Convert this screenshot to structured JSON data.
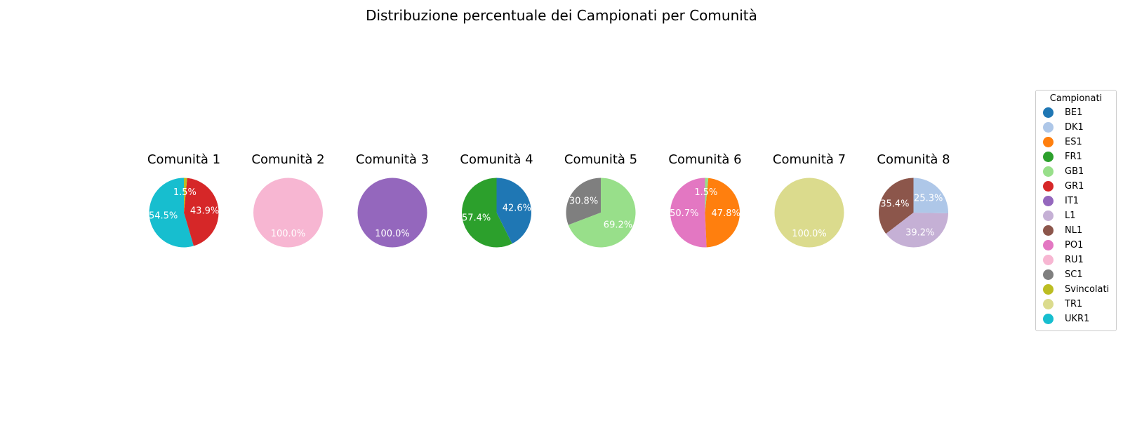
{
  "chart_data": {
    "type": "pie",
    "title": "Distribuzione percentuale dei Campionati per Comunità",
    "legend": {
      "title": "Campionati",
      "placement": "right",
      "entries": [
        {
          "name": "BE1",
          "color": "#1f77b4"
        },
        {
          "name": "DK1",
          "color": "#aec7e8"
        },
        {
          "name": "ES1",
          "color": "#ff7f0e"
        },
        {
          "name": "FR1",
          "color": "#2ca02c"
        },
        {
          "name": "GB1",
          "color": "#98df8a"
        },
        {
          "name": "GR1",
          "color": "#d62728"
        },
        {
          "name": "IT1",
          "color": "#9467bd"
        },
        {
          "name": "L1",
          "color": "#c5b0d5"
        },
        {
          "name": "NL1",
          "color": "#8c564b"
        },
        {
          "name": "PO1",
          "color": "#e377c2"
        },
        {
          "name": "RU1",
          "color": "#f7b6d2"
        },
        {
          "name": "SC1",
          "color": "#7f7f7f"
        },
        {
          "name": "Svincolati",
          "color": "#bcbd22"
        },
        {
          "name": "TR1",
          "color": "#dbdb8d"
        },
        {
          "name": "UKR1",
          "color": "#17becf"
        }
      ]
    },
    "pies": [
      {
        "title": "Comunità 1",
        "slices": [
          {
            "category": "UKR1",
            "value": 54.5,
            "label": "54.5%"
          },
          {
            "category": "GR1",
            "value": 43.9,
            "label": "43.9%"
          },
          {
            "category": "Svincolati",
            "value": 1.5,
            "label": "1.5%"
          }
        ]
      },
      {
        "title": "Comunità 2",
        "slices": [
          {
            "category": "RU1",
            "value": 100.0,
            "label": "100.0%"
          }
        ]
      },
      {
        "title": "Comunità 3",
        "slices": [
          {
            "category": "IT1",
            "value": 100.0,
            "label": "100.0%"
          }
        ]
      },
      {
        "title": "Comunità 4",
        "slices": [
          {
            "category": "FR1",
            "value": 57.4,
            "label": "57.4%"
          },
          {
            "category": "BE1",
            "value": 42.6,
            "label": "42.6%"
          }
        ]
      },
      {
        "title": "Comunità 5",
        "slices": [
          {
            "category": "SC1",
            "value": 30.8,
            "label": "30.8%"
          },
          {
            "category": "GB1",
            "value": 69.2,
            "label": "69.2%"
          }
        ]
      },
      {
        "title": "Comunità 6",
        "slices": [
          {
            "category": "PO1",
            "value": 50.7,
            "label": "50.7%"
          },
          {
            "category": "ES1",
            "value": 47.8,
            "label": "47.8%"
          },
          {
            "category": "GB1",
            "value": 1.5,
            "label": "1.5%"
          }
        ]
      },
      {
        "title": "Comunità 7",
        "slices": [
          {
            "category": "TR1",
            "value": 100.0,
            "label": "100.0%"
          }
        ]
      },
      {
        "title": "Comunità 8",
        "slices": [
          {
            "category": "NL1",
            "value": 35.4,
            "label": "35.4%"
          },
          {
            "category": "L1",
            "value": 39.2,
            "label": "39.2%"
          },
          {
            "category": "DK1",
            "value": 25.3,
            "label": "25.3%"
          }
        ]
      }
    ]
  }
}
